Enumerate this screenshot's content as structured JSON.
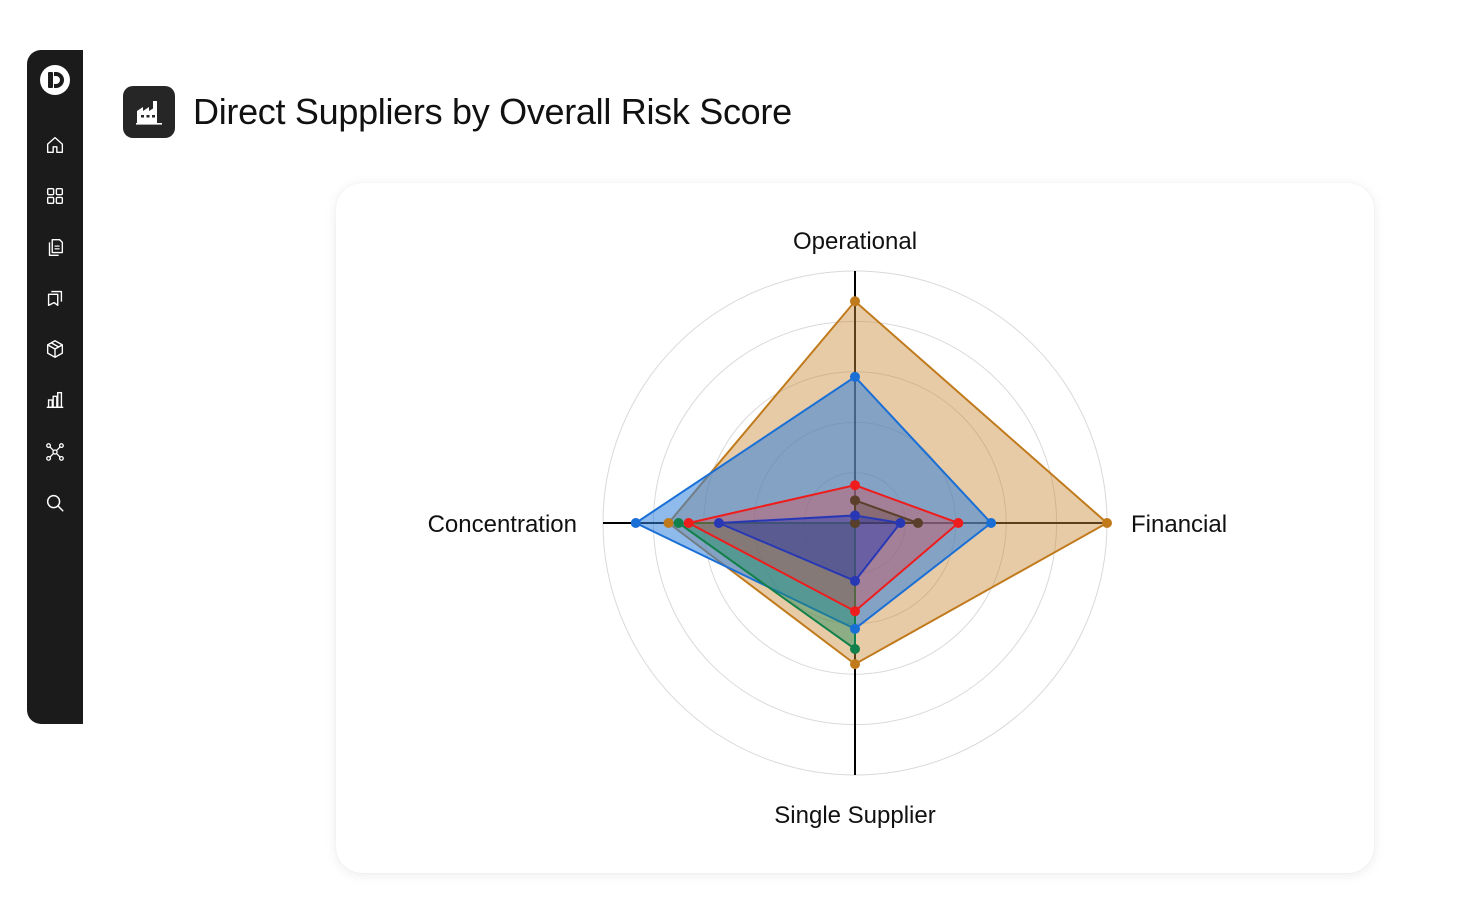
{
  "page": {
    "title": "Direct Suppliers by Overall Risk Score",
    "title_icon": "factory-icon"
  },
  "sidebar": {
    "logo": "app-logo",
    "items": [
      {
        "name": "home",
        "icon": "home-icon"
      },
      {
        "name": "dashboards",
        "icon": "grid-icon"
      },
      {
        "name": "documents",
        "icon": "documents-icon"
      },
      {
        "name": "review",
        "icon": "review-icon"
      },
      {
        "name": "products",
        "icon": "box-icon"
      },
      {
        "name": "analytics",
        "icon": "bar-chart-icon"
      },
      {
        "name": "network",
        "icon": "network-icon"
      },
      {
        "name": "search",
        "icon": "search-icon"
      }
    ]
  },
  "chart_data": {
    "type": "radar",
    "axes": [
      "Operational",
      "Financial",
      "Single Supplier",
      "Concentration"
    ],
    "r_max": 5,
    "rings": 5,
    "grid": true,
    "legend": false,
    "series": [
      {
        "color": "#c07a1c",
        "fill": "rgba(202,140,60,0.45)",
        "values": [
          4.4,
          5.0,
          2.8,
          3.7
        ]
      },
      {
        "color": "#1a6fd6",
        "fill": "rgba(50,130,220,0.55)",
        "values": [
          2.9,
          2.7,
          2.1,
          4.35
        ]
      },
      {
        "color": "#12804a",
        "fill": "rgba(30,140,90,0.45)",
        "values": [
          0.0,
          0.0,
          2.5,
          3.5
        ]
      },
      {
        "color": "#ee1c1c",
        "fill": "rgba(238,50,50,0.30)",
        "values": [
          0.75,
          2.05,
          1.75,
          3.3
        ]
      },
      {
        "color": "#5a3f2a",
        "fill": "rgba(80,60,40,0.30)",
        "values": [
          0.45,
          1.25,
          0.0,
          0.0
        ]
      },
      {
        "color": "#2838b4",
        "fill": "rgba(40,56,180,0.45)",
        "values": [
          0.15,
          0.9,
          1.15,
          2.7
        ]
      }
    ]
  }
}
